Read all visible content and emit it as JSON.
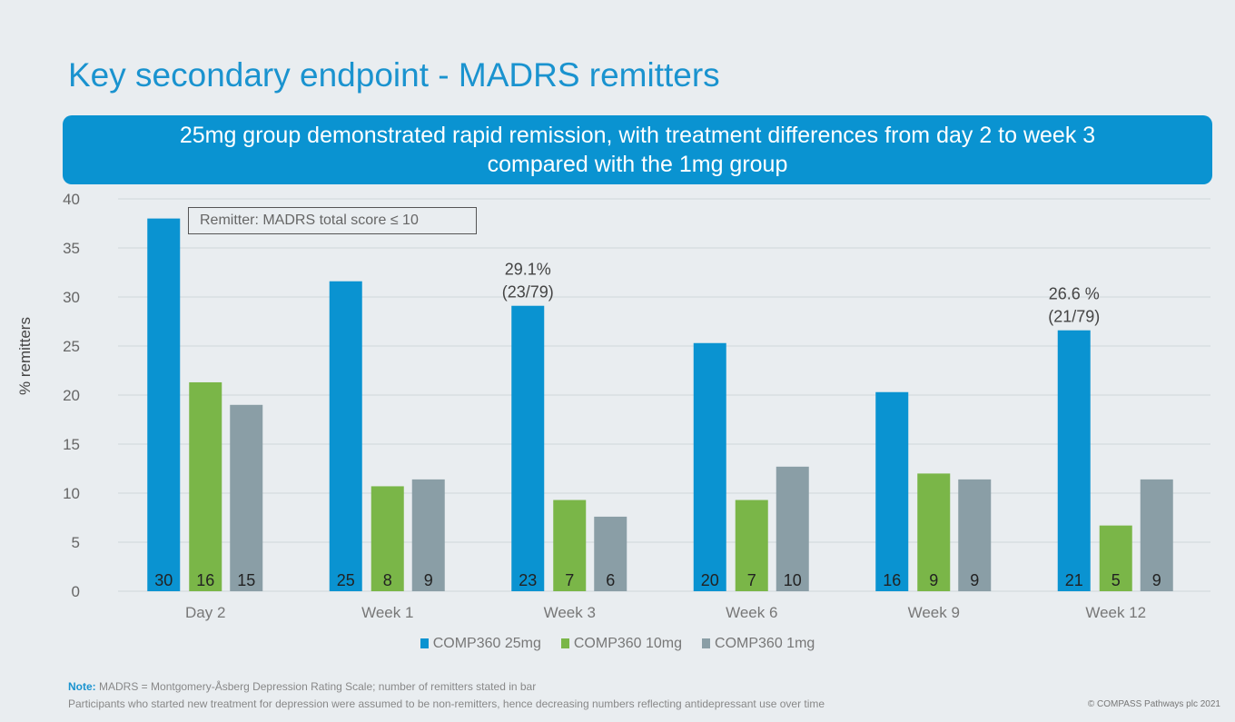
{
  "title": "Key secondary endpoint - MADRS remitters",
  "banner": {
    "line1": "25mg group demonstrated rapid remission, with treatment differences from day 2 to week 3",
    "line2": "compared with the 1mg group"
  },
  "definition_box": "Remitter: MADRS total score ≤ 10",
  "note": {
    "label": "Note:",
    "line1": "MADRS = Montgomery-Åsberg Depression Rating Scale; number of remitters stated in bar",
    "line2": "Participants who started new treatment for depression were assumed to be non-remitters, hence decreasing numbers reflecting antidepressant use over time"
  },
  "copyright": "© COMPASS Pathways plc 2021",
  "chart_data": {
    "type": "bar",
    "ylabel": "% remitters",
    "xlabel": "",
    "ylim": [
      0,
      40
    ],
    "yticks": [
      0,
      5,
      10,
      15,
      20,
      25,
      30,
      35,
      40
    ],
    "grid": true,
    "legend_position": "bottom",
    "categories": [
      "Day 2",
      "Week 1",
      "Week 3",
      "Week 6",
      "Week 9",
      "Week 12"
    ],
    "series": [
      {
        "name": "COMP360 25mg",
        "color": "#0a93d1",
        "values": [
          38.0,
          31.6,
          29.1,
          25.3,
          20.3,
          26.6
        ],
        "counts": [
          "30",
          "25",
          "23",
          "20",
          "16",
          "21"
        ]
      },
      {
        "name": "COMP360 10mg",
        "color": "#7ab648",
        "values": [
          21.3,
          10.7,
          9.3,
          9.3,
          12.0,
          6.7
        ],
        "counts": [
          "16",
          "8",
          "7",
          "7",
          "9",
          "5"
        ]
      },
      {
        "name": "COMP360 1mg",
        "color": "#8a9ea6",
        "values": [
          19.0,
          11.4,
          7.6,
          12.7,
          11.4,
          11.4
        ],
        "counts": [
          "15",
          "9",
          "6",
          "10",
          "9",
          "9"
        ]
      }
    ],
    "annotations": [
      {
        "category": "Week 3",
        "series": "COMP360 25mg",
        "line1": "29.1%",
        "line2": "(23/79)"
      },
      {
        "category": "Week 12",
        "series": "COMP360 25mg",
        "line1": "26.6 %",
        "line2": "(21/79)"
      }
    ]
  }
}
